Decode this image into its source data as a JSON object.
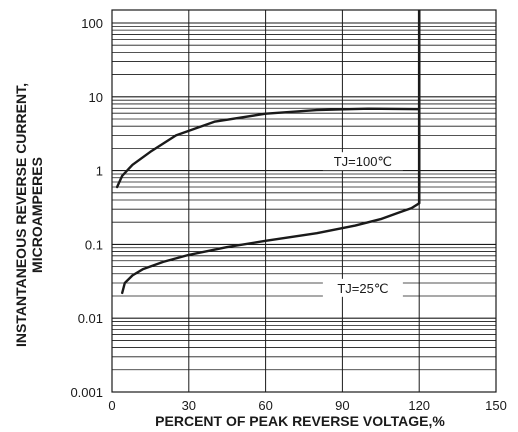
{
  "chart_data": {
    "type": "line",
    "title": "",
    "xlabel": "PERCENT OF PEAK REVERSE VOLTAGE,%",
    "ylabel_lines": [
      "INSTANTANEOUS REVERSE CURRENT,",
      "MICROAMPERES"
    ],
    "x_ticks": [
      "0",
      "30",
      "60",
      "90",
      "120",
      "150"
    ],
    "y_ticks": [
      "0.001",
      "0.01",
      "0.1",
      "1",
      "10",
      "100"
    ],
    "xlim": [
      0,
      150
    ],
    "ylim": [
      0.001,
      150
    ],
    "y_scale": "log",
    "grid": true,
    "series": [
      {
        "name": "TJ=100℃",
        "x": [
          2,
          4,
          8,
          15,
          25,
          40,
          60,
          80,
          100,
          120
        ],
        "y": [
          0.6,
          0.85,
          1.2,
          1.8,
          3.0,
          4.6,
          5.9,
          6.6,
          6.9,
          6.8
        ]
      },
      {
        "name": "TJ=25℃",
        "x": [
          4,
          5,
          8,
          12,
          20,
          30,
          45,
          60,
          80,
          95,
          105,
          112,
          117,
          120
        ],
        "y": [
          0.022,
          0.03,
          0.038,
          0.046,
          0.058,
          0.072,
          0.092,
          0.112,
          0.142,
          0.18,
          0.22,
          0.27,
          0.31,
          0.36
        ]
      }
    ],
    "vertical_line": {
      "x": 120,
      "y_from": 0.36,
      "y_to": 150
    },
    "annotations": [
      {
        "text": "TJ=100℃",
        "x": 98,
        "y": 1.3
      },
      {
        "text": "TJ=25℃",
        "x": 98,
        "y": 0.025
      }
    ],
    "colors": {
      "line": "#1a1a1a",
      "grid": "#1a1a1a"
    }
  }
}
